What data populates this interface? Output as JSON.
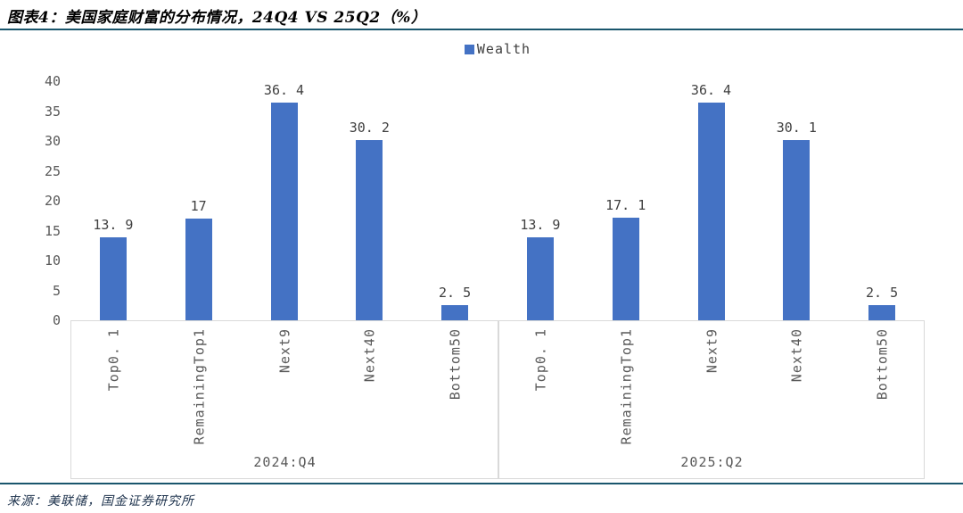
{
  "header": {
    "title": "图表4：美国家庭财富的分布情况，24Q4 VS 25Q2（%）"
  },
  "legend": {
    "label": "Wealth"
  },
  "source": {
    "text": "来源：美联储，国金证券研究所"
  },
  "colors": {
    "bar": "#4472C4",
    "rule": "#1A566D",
    "box_border": "#D9D9D9",
    "axis_text": "#595959",
    "value_text": "#404040",
    "source_text": "#20354F"
  },
  "chart_data": {
    "type": "bar",
    "title": "图表4：美国家庭财富的分布情况，24Q4 VS 25Q2（%）",
    "legend_entries": [
      "Wealth"
    ],
    "legend_position": "top-center",
    "grid": false,
    "ylim": [
      0,
      40
    ],
    "ytick_step": 5,
    "yticks": [
      "40",
      "35",
      "30",
      "25",
      "20",
      "15",
      "10",
      "5",
      "0"
    ],
    "groups": [
      {
        "label": "2024:Q4",
        "categories": [
          "Top0.1",
          "RemainingTop1",
          "Next9",
          "Next40",
          "Bottom50"
        ],
        "category_labels": [
          "Top0. 1",
          "RemainingTop1",
          "Next9",
          "Next40",
          "Bottom50"
        ],
        "values": [
          13.9,
          17,
          36.4,
          30.2,
          2.5
        ],
        "value_labels": [
          "13. 9",
          "17",
          "36. 4",
          "30. 2",
          "2. 5"
        ]
      },
      {
        "label": "2025:Q2",
        "categories": [
          "Top0.1",
          "RemainingTop1",
          "Next9",
          "Next40",
          "Bottom50"
        ],
        "category_labels": [
          "Top0. 1",
          "RemainingTop1",
          "Next9",
          "Next40",
          "Bottom50"
        ],
        "values": [
          13.9,
          17.1,
          36.4,
          30.1,
          2.5
        ],
        "value_labels": [
          "13. 9",
          "17. 1",
          "36. 4",
          "30. 1",
          "2. 5"
        ]
      }
    ]
  }
}
